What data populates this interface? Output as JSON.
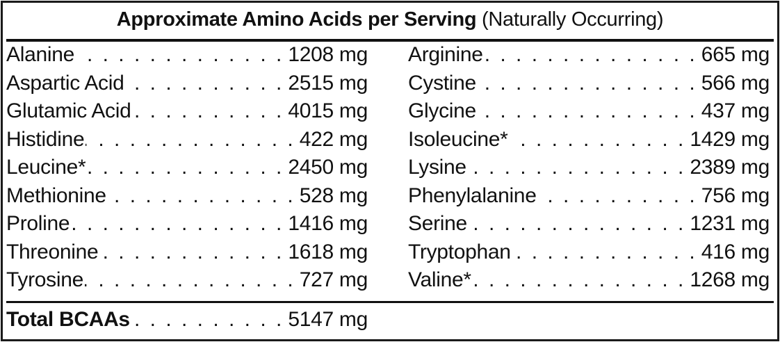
{
  "title": {
    "bold": "Approximate Amino Acids per Serving",
    "normal": "(Naturally Occurring)"
  },
  "left_column": [
    {
      "name": "Alanine",
      "value": "1208 mg"
    },
    {
      "name": "Aspartic Acid",
      "value": "2515 mg"
    },
    {
      "name": "Glutamic Acid",
      "value": "4015 mg"
    },
    {
      "name": "Histidine",
      "value": "422 mg"
    },
    {
      "name": "Leucine*",
      "value": "2450 mg"
    },
    {
      "name": "Methionine",
      "value": "528 mg"
    },
    {
      "name": "Proline",
      "value": "1416 mg"
    },
    {
      "name": "Threonine",
      "value": "1618 mg"
    },
    {
      "name": "Tyrosine",
      "value": "727 mg"
    }
  ],
  "right_column": [
    {
      "name": "Arginine",
      "value": "665 mg"
    },
    {
      "name": "Cystine",
      "value": "566 mg"
    },
    {
      "name": "Glycine",
      "value": "437 mg"
    },
    {
      "name": "Isoleucine*",
      "value": "1429 mg"
    },
    {
      "name": "Lysine",
      "value": "2389 mg"
    },
    {
      "name": "Phenylalanine",
      "value": "756 mg"
    },
    {
      "name": "Serine",
      "value": "1231 mg"
    },
    {
      "name": "Tryptophan",
      "value": "416 mg"
    },
    {
      "name": "Valine*",
      "value": "1268 mg"
    }
  ],
  "total": {
    "name": "Total BCAAs",
    "value": "5147 mg"
  }
}
